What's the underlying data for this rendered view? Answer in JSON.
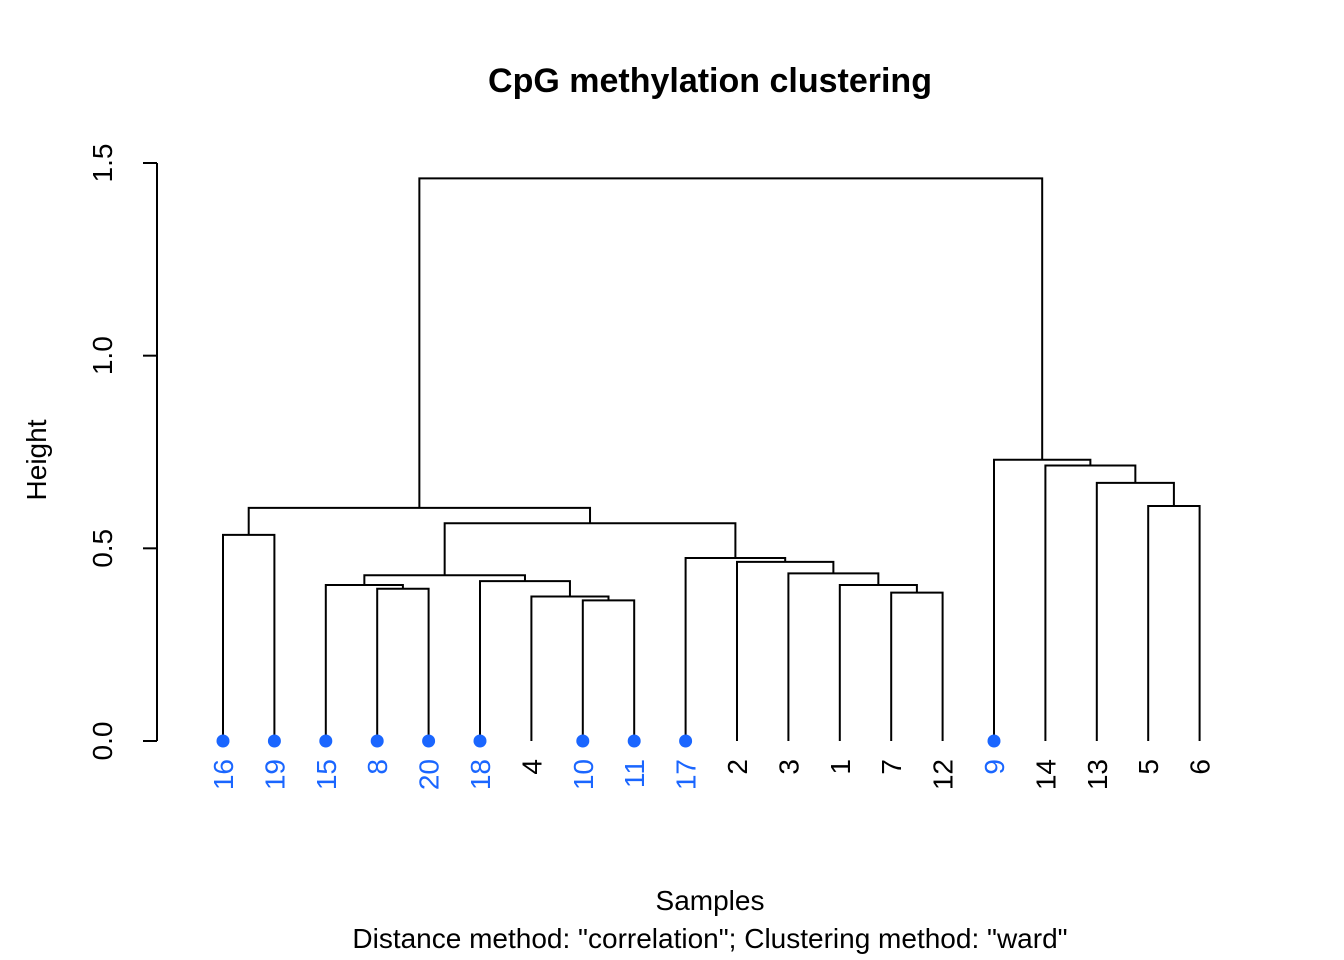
{
  "chart_data": {
    "type": "dendrogram",
    "title": "CpG methylation clustering",
    "xlabel": "Samples",
    "ylabel": "Height",
    "subtitle": "Distance method: \"correlation\"; Clustering method: \"ward\"",
    "ylim": [
      0,
      1.5
    ],
    "yticks": [
      0.0,
      0.5,
      1.0,
      1.5
    ],
    "ytick_labels": [
      "0.0",
      "0.5",
      "1.0",
      "1.5"
    ],
    "leaf_color": "#1a66ff",
    "default_color": "#000000",
    "leaves": [
      {
        "label": "16",
        "highlighted": true
      },
      {
        "label": "19",
        "highlighted": true
      },
      {
        "label": "15",
        "highlighted": true
      },
      {
        "label": "8",
        "highlighted": true
      },
      {
        "label": "20",
        "highlighted": true
      },
      {
        "label": "18",
        "highlighted": true
      },
      {
        "label": "4",
        "highlighted": false
      },
      {
        "label": "10",
        "highlighted": true
      },
      {
        "label": "11",
        "highlighted": true
      },
      {
        "label": "17",
        "highlighted": true
      },
      {
        "label": "2",
        "highlighted": false
      },
      {
        "label": "3",
        "highlighted": false
      },
      {
        "label": "1",
        "highlighted": false
      },
      {
        "label": "7",
        "highlighted": false
      },
      {
        "label": "12",
        "highlighted": false
      },
      {
        "label": "9",
        "highlighted": true
      },
      {
        "label": "14",
        "highlighted": false
      },
      {
        "label": "13",
        "highlighted": false
      },
      {
        "label": "5",
        "highlighted": false
      },
      {
        "label": "6",
        "highlighted": false
      }
    ],
    "merges": [
      {
        "a": "10",
        "b": "11",
        "height": 0.365
      },
      {
        "a": "4",
        "b": [
          "10",
          "11"
        ],
        "height": 0.375
      },
      {
        "a": "18",
        "b": [
          "4",
          "10",
          "11"
        ],
        "height": 0.415
      },
      {
        "a": "8",
        "b": "20",
        "height": 0.395
      },
      {
        "a": "15",
        "b": [
          "8",
          "20"
        ],
        "height": 0.405
      },
      {
        "a": [
          "15",
          "8",
          "20"
        ],
        "b": [
          "18",
          "4",
          "10",
          "11"
        ],
        "height": 0.43
      },
      {
        "a": "7",
        "b": "12",
        "height": 0.385
      },
      {
        "a": "1",
        "b": [
          "7",
          "12"
        ],
        "height": 0.405
      },
      {
        "a": "3",
        "b": [
          "1",
          "7",
          "12"
        ],
        "height": 0.435
      },
      {
        "a": "2",
        "b": [
          "3",
          "1",
          "7",
          "12"
        ],
        "height": 0.465
      },
      {
        "a": "17",
        "b": [
          "2",
          "3",
          "1",
          "7",
          "12"
        ],
        "height": 0.475
      },
      {
        "a": [
          "15",
          "8",
          "20",
          "18",
          "4",
          "10",
          "11"
        ],
        "b": [
          "17",
          "2",
          "3",
          "1",
          "7",
          "12"
        ],
        "height": 0.565
      },
      {
        "a": "16",
        "b": "19",
        "height": 0.535
      },
      {
        "a": [
          "16",
          "19"
        ],
        "b": [
          "15",
          "8",
          "20",
          "18",
          "4",
          "10",
          "11",
          "17",
          "2",
          "3",
          "1",
          "7",
          "12"
        ],
        "height": 0.605
      },
      {
        "a": "5",
        "b": "6",
        "height": 0.61
      },
      {
        "a": "13",
        "b": [
          "5",
          "6"
        ],
        "height": 0.67
      },
      {
        "a": "14",
        "b": [
          "13",
          "5",
          "6"
        ],
        "height": 0.715
      },
      {
        "a": "9",
        "b": [
          "14",
          "13",
          "5",
          "6"
        ],
        "height": 0.73
      },
      {
        "a": [
          "16",
          "19",
          "15",
          "8",
          "20",
          "18",
          "4",
          "10",
          "11",
          "17",
          "2",
          "3",
          "1",
          "7",
          "12"
        ],
        "b": [
          "9",
          "14",
          "13",
          "5",
          "6"
        ],
        "height": 1.46
      }
    ]
  }
}
